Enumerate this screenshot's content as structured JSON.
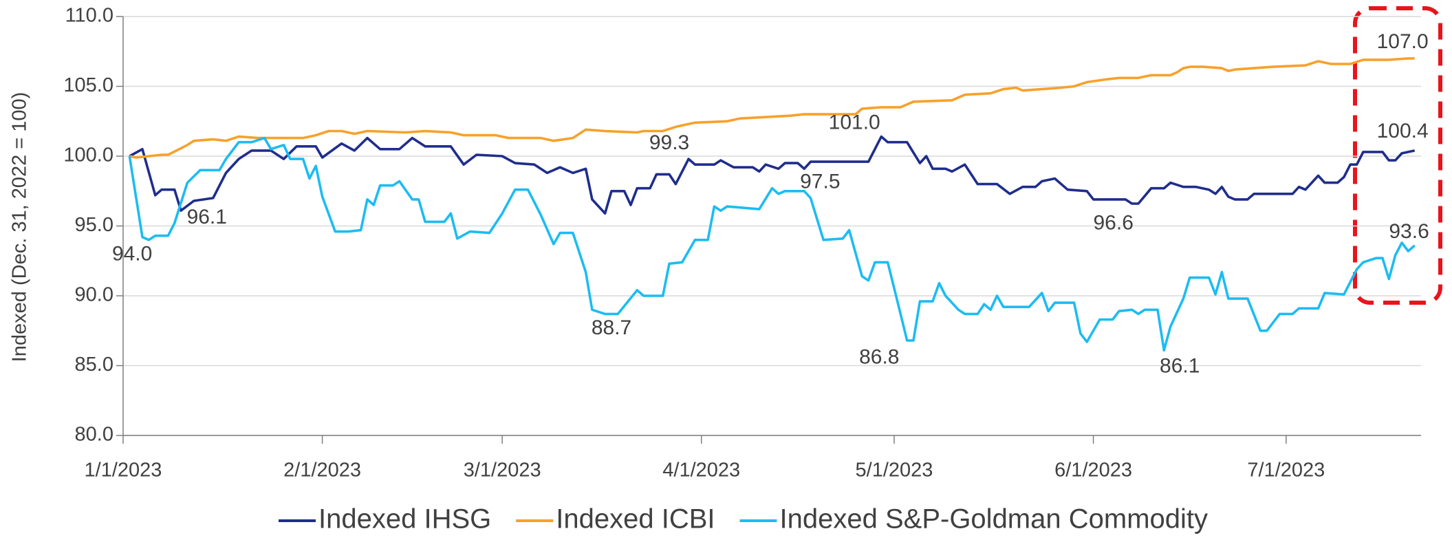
{
  "chart_data": {
    "type": "line",
    "ylabel": "Indexed (Dec. 31, 2022 = 100)",
    "xlim": [
      "1/1/2023",
      "7/22/2023"
    ],
    "xticks": [
      "1/1/2023",
      "2/1/2023",
      "3/1/2023",
      "4/1/2023",
      "5/1/2023",
      "6/1/2023",
      "7/1/2023"
    ],
    "ylim": [
      80,
      110
    ],
    "yticks": [
      {
        "value": 80,
        "label": "80.0"
      },
      {
        "value": 85,
        "label": "85.0"
      },
      {
        "value": 90,
        "label": "90.0"
      },
      {
        "value": 95,
        "label": "95.0"
      },
      {
        "value": 100,
        "label": "100.0"
      },
      {
        "value": 105,
        "label": "105.0"
      },
      {
        "value": 110,
        "label": "110.0"
      }
    ],
    "grid": true,
    "legend": "bottom",
    "series": [
      {
        "name": "Indexed IHSG",
        "color": "#1f2d8c",
        "x": [
          "1/2/2023",
          "1/4/2023",
          "1/6/2023",
          "1/7/2023",
          "1/9/2023",
          "1/10/2023",
          "1/12/2023",
          "1/15/2023",
          "1/17/2023",
          "1/19/2023",
          "1/21/2023",
          "1/24/2023",
          "1/26/2023",
          "1/28/2023",
          "1/31/2023",
          "2/1/2023",
          "2/4/2023",
          "2/6/2023",
          "2/8/2023",
          "2/10/2023",
          "2/13/2023",
          "2/15/2023",
          "2/17/2023",
          "2/21/2023",
          "2/23/2023",
          "2/25/2023",
          "3/1/2023",
          "3/3/2023",
          "3/6/2023",
          "3/8/2023",
          "3/10/2023",
          "3/12/2023",
          "3/14/2023",
          "3/15/2023",
          "3/17/2023",
          "3/18/2023",
          "3/20/2023",
          "3/21/2023",
          "3/22/2023",
          "3/24/2023",
          "3/25/2023",
          "3/27/2023",
          "3/28/2023",
          "3/30/2023",
          "3/31/2023",
          "4/3/2023",
          "4/4/2023",
          "4/6/2023",
          "4/9/2023",
          "4/10/2023",
          "4/11/2023",
          "4/13/2023",
          "4/14/2023",
          "4/16/2023",
          "4/17/2023",
          "4/18/2023",
          "4/27/2023",
          "4/29/2023",
          "4/30/2023",
          "5/3/2023",
          "5/5/2023",
          "5/6/2023",
          "5/7/2023",
          "5/9/2023",
          "5/10/2023",
          "5/12/2023",
          "5/14/2023",
          "5/17/2023",
          "5/19/2023",
          "5/21/2023",
          "5/23/2023",
          "5/24/2023",
          "5/26/2023",
          "5/28/2023",
          "5/31/2023",
          "6/1/2023",
          "6/6/2023",
          "6/7/2023",
          "6/8/2023",
          "6/10/2023",
          "6/12/2023",
          "6/13/2023",
          "6/15/2023",
          "6/17/2023",
          "6/19/2023",
          "6/20/2023",
          "6/21/2023",
          "6/22/2023",
          "6/23/2023",
          "6/25/2023",
          "6/26/2023",
          "7/2/2023",
          "7/3/2023",
          "7/4/2023",
          "7/6/2023",
          "7/7/2023",
          "7/9/2023",
          "7/10/2023",
          "7/11/2023",
          "7/12/2023",
          "7/13/2023",
          "7/16/2023",
          "7/17/2023",
          "7/18/2023",
          "7/19/2023",
          "7/21/2023"
        ],
        "values": [
          100.0,
          100.5,
          97.2,
          97.6,
          97.6,
          96.1,
          96.8,
          97.0,
          98.8,
          99.8,
          100.4,
          100.4,
          99.8,
          100.7,
          100.7,
          99.9,
          100.9,
          100.4,
          101.3,
          100.5,
          100.5,
          101.3,
          100.7,
          100.7,
          99.4,
          100.1,
          100.0,
          99.5,
          99.4,
          98.8,
          99.2,
          98.8,
          99.1,
          96.9,
          95.9,
          97.5,
          97.5,
          96.5,
          97.7,
          97.7,
          98.7,
          98.7,
          98.0,
          99.8,
          99.4,
          99.4,
          99.7,
          99.2,
          99.2,
          98.9,
          99.4,
          99.1,
          99.5,
          99.5,
          99.1,
          99.6,
          99.6,
          101.4,
          101.0,
          101.0,
          99.5,
          100.0,
          99.1,
          99.1,
          98.9,
          99.4,
          98.0,
          98.0,
          97.3,
          97.8,
          97.8,
          98.2,
          98.4,
          97.6,
          97.5,
          96.9,
          96.9,
          96.6,
          96.6,
          97.7,
          97.7,
          98.1,
          97.8,
          97.8,
          97.6,
          97.3,
          97.8,
          97.1,
          96.9,
          96.9,
          97.3,
          97.3,
          97.8,
          97.6,
          98.6,
          98.1,
          98.1,
          98.5,
          99.4,
          99.4,
          100.3,
          100.3,
          99.7,
          99.7,
          100.2,
          100.4
        ]
      },
      {
        "name": "Indexed ICBI",
        "color": "#f7a12a",
        "x": [
          "1/2/2023",
          "1/3/2023",
          "1/7/2023",
          "1/8/2023",
          "1/11/2023",
          "1/12/2023",
          "1/15/2023",
          "1/17/2023",
          "1/19/2023",
          "1/22/2023",
          "1/29/2023",
          "1/31/2023",
          "2/2/2023",
          "2/4/2023",
          "2/6/2023",
          "2/8/2023",
          "2/14/2023",
          "2/17/2023",
          "2/21/2023",
          "2/23/2023",
          "2/28/2023",
          "3/2/2023",
          "3/7/2023",
          "3/9/2023",
          "3/12/2023",
          "3/14/2023",
          "3/17/2023",
          "3/22/2023",
          "3/23/2023",
          "3/26/2023",
          "3/28/2023",
          "3/31/2023",
          "4/5/2023",
          "4/7/2023",
          "4/11/2023",
          "4/15/2023",
          "4/17/2023",
          "4/21/2023",
          "4/25/2023",
          "4/26/2023",
          "4/29/2023",
          "5/2/2023",
          "5/4/2023",
          "5/10/2023",
          "5/12/2023",
          "5/16/2023",
          "5/18/2023",
          "5/20/2023",
          "5/21/2023",
          "5/24/2023",
          "5/27/2023",
          "5/29/2023",
          "5/31/2023",
          "6/3/2023",
          "6/5/2023",
          "6/8/2023",
          "6/10/2023",
          "6/13/2023",
          "6/14/2023",
          "6/15/2023",
          "6/16/2023",
          "6/18/2023",
          "6/21/2023",
          "6/22/2023",
          "6/23/2023",
          "6/29/2023",
          "7/4/2023",
          "7/6/2023",
          "7/8/2023",
          "7/11/2023",
          "7/13/2023",
          "7/17/2023",
          "7/20/2023",
          "7/21/2023"
        ],
        "values": [
          100.0,
          99.9,
          100.1,
          100.1,
          100.8,
          101.1,
          101.2,
          101.1,
          101.4,
          101.3,
          101.3,
          101.5,
          101.8,
          101.8,
          101.6,
          101.8,
          101.7,
          101.8,
          101.7,
          101.5,
          101.5,
          101.3,
          101.3,
          101.1,
          101.3,
          101.9,
          101.8,
          101.7,
          101.8,
          101.8,
          102.1,
          102.4,
          102.5,
          102.7,
          102.8,
          102.9,
          103.0,
          103.0,
          103.0,
          103.4,
          103.5,
          103.5,
          103.9,
          104.0,
          104.4,
          104.5,
          104.8,
          104.9,
          104.7,
          104.8,
          104.9,
          105.0,
          105.3,
          105.5,
          105.6,
          105.6,
          105.8,
          105.8,
          106.0,
          106.3,
          106.4,
          106.4,
          106.3,
          106.1,
          106.2,
          106.4,
          106.5,
          106.8,
          106.6,
          106.6,
          106.9,
          106.9,
          107.0,
          107.0
        ]
      },
      {
        "name": "Indexed S&P-Goldman Commodity",
        "color": "#1cbcf2",
        "x": [
          "1/2/2023",
          "1/4/2023",
          "1/5/2023",
          "1/6/2023",
          "1/8/2023",
          "1/9/2023",
          "1/11/2023",
          "1/13/2023",
          "1/16/2023",
          "1/17/2023",
          "1/19/2023",
          "1/21/2023",
          "1/23/2023",
          "1/24/2023",
          "1/26/2023",
          "1/27/2023",
          "1/29/2023",
          "1/30/2023",
          "1/31/2023",
          "2/1/2023",
          "2/3/2023",
          "2/5/2023",
          "2/7/2023",
          "2/8/2023",
          "2/9/2023",
          "2/10/2023",
          "2/12/2023",
          "2/13/2023",
          "2/15/2023",
          "2/16/2023",
          "2/17/2023",
          "2/20/2023",
          "2/21/2023",
          "2/22/2023",
          "2/24/2023",
          "2/27/2023",
          "3/1/2023",
          "3/3/2023",
          "3/5/2023",
          "3/7/2023",
          "3/9/2023",
          "3/10/2023",
          "3/12/2023",
          "3/14/2023",
          "3/15/2023",
          "3/17/2023",
          "3/19/2023",
          "3/22/2023",
          "3/23/2023",
          "3/26/2023",
          "3/27/2023",
          "3/29/2023",
          "3/31/2023",
          "4/2/2023",
          "4/3/2023",
          "4/4/2023",
          "4/5/2023",
          "4/10/2023",
          "4/12/2023",
          "4/13/2023",
          "4/14/2023",
          "4/17/2023",
          "4/18/2023",
          "4/20/2023",
          "4/23/2023",
          "4/24/2023",
          "4/26/2023",
          "4/27/2023",
          "4/28/2023",
          "4/30/2023",
          "5/2/2023",
          "5/3/2023",
          "5/4/2023",
          "5/5/2023",
          "5/7/2023",
          "5/8/2023",
          "5/9/2023",
          "5/11/2023",
          "5/12/2023",
          "5/14/2023",
          "5/15/2023",
          "5/16/2023",
          "5/17/2023",
          "5/18/2023",
          "5/22/2023",
          "5/24/2023",
          "5/25/2023",
          "5/26/2023",
          "5/29/2023",
          "5/30/2023",
          "5/31/2023",
          "6/2/2023",
          "6/4/2023",
          "6/5/2023",
          "6/7/2023",
          "6/8/2023",
          "6/9/2023",
          "6/11/2023",
          "6/12/2023",
          "6/13/2023",
          "6/15/2023",
          "6/16/2023",
          "6/19/2023",
          "6/20/2023",
          "6/21/2023",
          "6/22/2023",
          "6/25/2023",
          "6/27/2023",
          "6/28/2023",
          "6/30/2023",
          "7/2/2023",
          "7/3/2023",
          "7/6/2023",
          "7/7/2023",
          "7/10/2023",
          "7/12/2023",
          "7/13/2023",
          "7/15/2023",
          "7/16/2023",
          "7/17/2023",
          "7/18/2023",
          "7/19/2023",
          "7/20/2023",
          "7/21/2023"
        ],
        "values": [
          100.0,
          94.2,
          94.0,
          94.3,
          94.3,
          95.2,
          98.1,
          99.0,
          99.0,
          99.8,
          101.0,
          101.0,
          101.3,
          100.5,
          100.8,
          99.8,
          99.8,
          98.4,
          99.3,
          97.1,
          94.6,
          94.6,
          94.7,
          96.9,
          96.5,
          97.9,
          97.9,
          98.2,
          96.9,
          96.9,
          95.3,
          95.3,
          95.9,
          94.1,
          94.6,
          94.5,
          95.9,
          97.6,
          97.6,
          95.8,
          93.7,
          94.5,
          94.5,
          91.7,
          89.0,
          88.7,
          88.7,
          90.4,
          90.0,
          90.0,
          92.3,
          92.4,
          94.0,
          94.0,
          96.4,
          96.1,
          96.4,
          96.2,
          97.7,
          97.3,
          97.5,
          97.5,
          97.0,
          94.0,
          94.1,
          94.7,
          91.4,
          91.1,
          92.4,
          92.4,
          88.7,
          86.8,
          86.8,
          89.6,
          89.6,
          90.9,
          90.0,
          89.0,
          88.7,
          88.7,
          89.4,
          89.0,
          90.0,
          89.2,
          89.2,
          90.2,
          88.9,
          89.5,
          89.5,
          87.3,
          86.7,
          88.3,
          88.3,
          88.9,
          89.0,
          88.7,
          89.0,
          89.0,
          86.1,
          87.8,
          89.8,
          91.3,
          91.3,
          90.1,
          91.7,
          89.8,
          89.8,
          87.5,
          87.5,
          88.7,
          88.7,
          89.1,
          89.1,
          90.2,
          90.1,
          91.9,
          92.4,
          92.7,
          92.7,
          91.2,
          92.9,
          93.8,
          93.2,
          93.6
        ]
      }
    ],
    "annotations": [
      {
        "label": "94.0",
        "value": 94.0,
        "x": "1/5/2023"
      },
      {
        "label": "96.1",
        "value": 96.1,
        "x": "1/10/2023"
      },
      {
        "label": "88.7",
        "value": 88.7,
        "x": "3/17/2023"
      },
      {
        "label": "99.3",
        "value": 99.3,
        "x": "3/27/2023"
      },
      {
        "label": "97.5",
        "value": 97.5,
        "x": "4/14/2023"
      },
      {
        "label": "101.0",
        "value": 101.0,
        "x": "4/30/2023"
      },
      {
        "label": "86.8",
        "value": 86.8,
        "x": "5/3/2023"
      },
      {
        "label": "96.6",
        "value": 96.6,
        "x": "6/7/2023"
      },
      {
        "label": "86.1",
        "value": 86.1,
        "x": "6/12/2023"
      },
      {
        "label": "107.0",
        "value": 107.0,
        "x": "7/21/2023"
      },
      {
        "label": "100.4",
        "value": 100.4,
        "x": "7/21/2023"
      },
      {
        "label": "93.6",
        "value": 93.6,
        "x": "7/21/2023"
      }
    ]
  }
}
